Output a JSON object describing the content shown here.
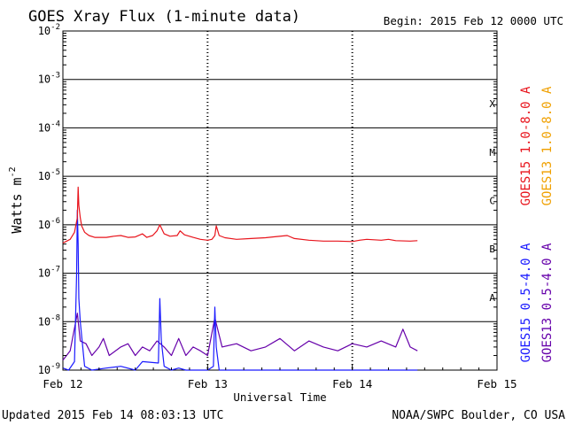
{
  "chart_data": {
    "type": "line",
    "title": "GOES Xray Flux (1-minute data)",
    "begin_label": "Begin:  2015 Feb 12 0000 UTC",
    "xlabel": "Universal Time",
    "ylabel": "Watts m",
    "ylabel_superscript": "-2",
    "y_scale": "log",
    "ylim": [
      1e-09,
      0.01
    ],
    "y_ticks": [
      {
        "exp": -2,
        "label": "10",
        "sup": "-2"
      },
      {
        "exp": -3,
        "label": "10",
        "sup": "-3"
      },
      {
        "exp": -4,
        "label": "10",
        "sup": "-4"
      },
      {
        "exp": -5,
        "label": "10",
        "sup": "-5"
      },
      {
        "exp": -6,
        "label": "10",
        "sup": "-6"
      },
      {
        "exp": -7,
        "label": "10",
        "sup": "-7"
      },
      {
        "exp": -8,
        "label": "10",
        "sup": "-8"
      },
      {
        "exp": -9,
        "label": "10",
        "sup": "-9"
      }
    ],
    "x_range_days": [
      0,
      3
    ],
    "x_ticks": [
      {
        "day": 0,
        "label": "Feb 12"
      },
      {
        "day": 1,
        "label": "Feb 13"
      },
      {
        "day": 2,
        "label": "Feb 14"
      },
      {
        "day": 3,
        "label": "Feb 15"
      }
    ],
    "flare_classes": [
      {
        "label": "X",
        "exp": -3.5
      },
      {
        "label": "M",
        "exp": -4.5
      },
      {
        "label": "C",
        "exp": -5.5
      },
      {
        "label": "B",
        "exp": -6.5
      },
      {
        "label": "A",
        "exp": -7.5
      }
    ],
    "series": [
      {
        "name": "GOES15 1.0-8.0 A",
        "color": "#e8141c",
        "points": [
          [
            0.0,
            4.2e-07
          ],
          [
            0.02,
            4.5e-07
          ],
          [
            0.05,
            5e-07
          ],
          [
            0.08,
            7e-07
          ],
          [
            0.1,
            1.4e-06
          ],
          [
            0.105,
            6e-06
          ],
          [
            0.11,
            2.5e-06
          ],
          [
            0.12,
            1.4e-06
          ],
          [
            0.13,
            9.5e-07
          ],
          [
            0.15,
            7e-07
          ],
          [
            0.18,
            6e-07
          ],
          [
            0.22,
            5.5e-07
          ],
          [
            0.3,
            5.5e-07
          ],
          [
            0.35,
            5.8e-07
          ],
          [
            0.4,
            6e-07
          ],
          [
            0.45,
            5.5e-07
          ],
          [
            0.5,
            5.6e-07
          ],
          [
            0.55,
            6.5e-07
          ],
          [
            0.58,
            5.5e-07
          ],
          [
            0.62,
            6e-07
          ],
          [
            0.65,
            7.5e-07
          ],
          [
            0.67,
            1e-06
          ],
          [
            0.7,
            6.5e-07
          ],
          [
            0.74,
            5.8e-07
          ],
          [
            0.79,
            6e-07
          ],
          [
            0.81,
            7.5e-07
          ],
          [
            0.84,
            6.2e-07
          ],
          [
            0.9,
            5.5e-07
          ],
          [
            0.95,
            5e-07
          ],
          [
            1.0,
            4.8e-07
          ],
          [
            1.03,
            5e-07
          ],
          [
            1.05,
            6e-07
          ],
          [
            1.06,
            9.5e-07
          ],
          [
            1.08,
            6e-07
          ],
          [
            1.12,
            5.4e-07
          ],
          [
            1.2,
            5e-07
          ],
          [
            1.3,
            5.2e-07
          ],
          [
            1.4,
            5.4e-07
          ],
          [
            1.45,
            5.6e-07
          ],
          [
            1.55,
            6e-07
          ],
          [
            1.6,
            5.2e-07
          ],
          [
            1.7,
            4.8e-07
          ],
          [
            1.8,
            4.6e-07
          ],
          [
            1.9,
            4.6e-07
          ],
          [
            2.0,
            4.5e-07
          ],
          [
            2.05,
            4.8e-07
          ],
          [
            2.1,
            5e-07
          ],
          [
            2.2,
            4.8e-07
          ],
          [
            2.25,
            5e-07
          ],
          [
            2.3,
            4.7e-07
          ],
          [
            2.4,
            4.6e-07
          ],
          [
            2.45,
            4.7e-07
          ]
        ]
      },
      {
        "name": "GOES13 1.0-8.0 A",
        "color": "#f0a000",
        "points": []
      },
      {
        "name": "GOES15 0.5-4.0 A",
        "color": "#1a1aff",
        "points": [
          [
            0.0,
            1.1e-09
          ],
          [
            0.04,
            1e-09
          ],
          [
            0.08,
            1.5e-09
          ],
          [
            0.095,
            1e-07
          ],
          [
            0.1,
            2e-06
          ],
          [
            0.105,
            4e-07
          ],
          [
            0.11,
            3e-08
          ],
          [
            0.12,
            1e-08
          ],
          [
            0.15,
            1.2e-09
          ],
          [
            0.2,
            1e-09
          ],
          [
            0.3,
            1.1e-09
          ],
          [
            0.4,
            1.2e-09
          ],
          [
            0.5,
            1e-09
          ],
          [
            0.55,
            1.5e-09
          ],
          [
            0.66,
            1.4e-09
          ],
          [
            0.67,
            3e-08
          ],
          [
            0.68,
            4e-09
          ],
          [
            0.7,
            1.2e-09
          ],
          [
            0.75,
            1e-09
          ],
          [
            0.8,
            1.1e-09
          ],
          [
            0.85,
            1e-09
          ],
          [
            0.9,
            1e-09
          ],
          [
            1.0,
            1e-09
          ],
          [
            1.04,
            1.2e-09
          ],
          [
            1.05,
            2e-08
          ],
          [
            1.06,
            3e-09
          ],
          [
            1.08,
            1e-09
          ],
          [
            1.2,
            1e-09
          ],
          [
            1.4,
            1e-09
          ],
          [
            1.6,
            1e-09
          ],
          [
            1.8,
            1e-09
          ],
          [
            2.0,
            1e-09
          ],
          [
            2.2,
            1e-09
          ],
          [
            2.45,
            1e-09
          ]
        ]
      },
      {
        "name": "GOES13 0.5-4.0 A",
        "color": "#6600aa",
        "points": [
          [
            0.0,
            1.6e-09
          ],
          [
            0.05,
            2.5e-09
          ],
          [
            0.1,
            1.5e-08
          ],
          [
            0.12,
            4e-09
          ],
          [
            0.16,
            3.5e-09
          ],
          [
            0.2,
            2e-09
          ],
          [
            0.25,
            3e-09
          ],
          [
            0.28,
            4.5e-09
          ],
          [
            0.32,
            2e-09
          ],
          [
            0.4,
            3e-09
          ],
          [
            0.45,
            3.5e-09
          ],
          [
            0.5,
            2e-09
          ],
          [
            0.55,
            3e-09
          ],
          [
            0.6,
            2.5e-09
          ],
          [
            0.65,
            4e-09
          ],
          [
            0.7,
            3e-09
          ],
          [
            0.75,
            2e-09
          ],
          [
            0.8,
            4.5e-09
          ],
          [
            0.85,
            2e-09
          ],
          [
            0.9,
            3e-09
          ],
          [
            0.95,
            2.5e-09
          ],
          [
            1.0,
            2e-09
          ],
          [
            1.05,
            1.2e-08
          ],
          [
            1.1,
            3e-09
          ],
          [
            1.2,
            3.5e-09
          ],
          [
            1.3,
            2.5e-09
          ],
          [
            1.4,
            3e-09
          ],
          [
            1.5,
            4.5e-09
          ],
          [
            1.6,
            2.5e-09
          ],
          [
            1.7,
            4e-09
          ],
          [
            1.8,
            3e-09
          ],
          [
            1.9,
            2.5e-09
          ],
          [
            2.0,
            3.5e-09
          ],
          [
            2.1,
            3e-09
          ],
          [
            2.2,
            4e-09
          ],
          [
            2.3,
            3e-09
          ],
          [
            2.35,
            7e-09
          ],
          [
            2.4,
            3e-09
          ],
          [
            2.45,
            2.5e-09
          ]
        ]
      }
    ]
  },
  "footer": {
    "updated": "Updated 2015 Feb 14 08:03:13 UTC",
    "source": "NOAA/SWPC Boulder, CO USA"
  }
}
